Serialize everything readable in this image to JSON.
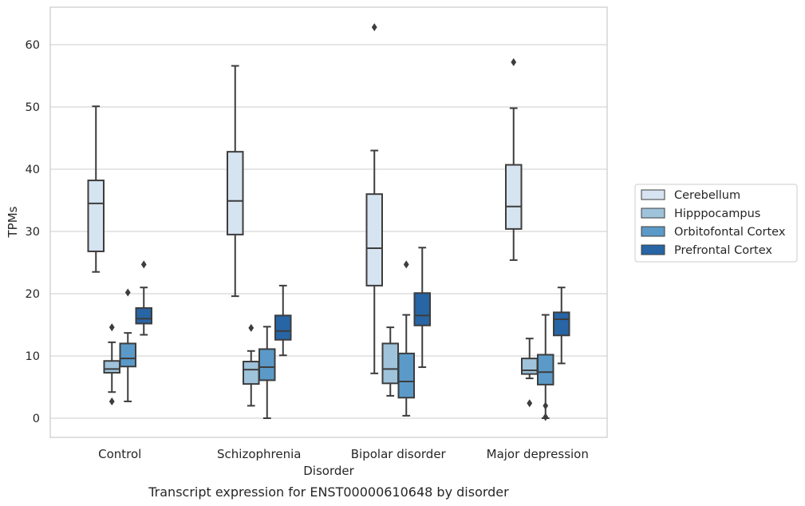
{
  "chart_data": {
    "type": "boxplot",
    "title": "",
    "caption": "Transcript expression for ENST00000610648 by disorder",
    "xlabel": "Disorder",
    "ylabel": "TPMs",
    "ylim": [
      -3,
      66
    ],
    "yticks": [
      0,
      10,
      20,
      30,
      40,
      50,
      60
    ],
    "grid": "horizontal",
    "legend_position": "right, outside",
    "categories": [
      "Control",
      "Schizophrenia",
      "Bipolar disorder",
      "Major depression"
    ],
    "series": [
      {
        "name": "Cerebellum",
        "color": "#d6e3f1",
        "boxes": [
          {
            "whislo": 23.5,
            "q1": 26.8,
            "med": 34.5,
            "q3": 38.2,
            "whishi": 50.1,
            "fliers": []
          },
          {
            "whislo": 19.6,
            "q1": 29.5,
            "med": 34.9,
            "q3": 42.8,
            "whishi": 56.6,
            "fliers": []
          },
          {
            "whislo": 7.2,
            "q1": 21.3,
            "med": 27.3,
            "q3": 36.0,
            "whishi": 43.0,
            "fliers": [
              62.8
            ]
          },
          {
            "whislo": 25.4,
            "q1": 30.4,
            "med": 34.0,
            "q3": 40.7,
            "whishi": 49.8,
            "fliers": [
              57.2
            ]
          }
        ]
      },
      {
        "name": "Hipppocampus",
        "color": "#9ec3db",
        "boxes": [
          {
            "whislo": 4.2,
            "q1": 7.3,
            "med": 7.9,
            "q3": 9.2,
            "whishi": 12.2,
            "fliers": [
              14.6,
              2.7
            ]
          },
          {
            "whislo": 2.0,
            "q1": 5.5,
            "med": 7.8,
            "q3": 9.1,
            "whishi": 10.8,
            "fliers": [
              14.5
            ]
          },
          {
            "whislo": 3.6,
            "q1": 5.6,
            "med": 7.9,
            "q3": 12.0,
            "whishi": 14.6,
            "fliers": []
          },
          {
            "whislo": 6.4,
            "q1": 7.1,
            "med": 7.7,
            "q3": 9.6,
            "whishi": 12.8,
            "fliers": [
              2.4
            ]
          }
        ]
      },
      {
        "name": "Orbitofontal Cortex",
        "color": "#5b9ac8",
        "boxes": [
          {
            "whislo": 2.7,
            "q1": 8.3,
            "med": 9.6,
            "q3": 12.0,
            "whishi": 13.7,
            "fliers": [
              20.2
            ]
          },
          {
            "whislo": 0.0,
            "q1": 6.1,
            "med": 8.2,
            "q3": 11.1,
            "whishi": 14.7,
            "fliers": []
          },
          {
            "whislo": 0.4,
            "q1": 3.3,
            "med": 5.9,
            "q3": 10.4,
            "whishi": 16.6,
            "fliers": [
              24.7
            ]
          },
          {
            "whislo": 0.0,
            "q1": 5.4,
            "med": 7.4,
            "q3": 10.2,
            "whishi": 16.6,
            "fliers": [
              2.0,
              0.2
            ]
          }
        ]
      },
      {
        "name": "Prefrontal Cortex",
        "color": "#2765a5",
        "boxes": [
          {
            "whislo": 13.4,
            "q1": 15.2,
            "med": 16.0,
            "q3": 17.7,
            "whishi": 21.0,
            "fliers": [
              24.7
            ]
          },
          {
            "whislo": 10.1,
            "q1": 12.6,
            "med": 14.0,
            "q3": 16.5,
            "whishi": 21.3,
            "fliers": []
          },
          {
            "whislo": 8.2,
            "q1": 14.9,
            "med": 16.5,
            "q3": 20.1,
            "whishi": 27.4,
            "fliers": []
          },
          {
            "whislo": 8.8,
            "q1": 13.3,
            "med": 15.9,
            "q3": 17.0,
            "whishi": 21.0,
            "fliers": []
          }
        ]
      }
    ]
  }
}
